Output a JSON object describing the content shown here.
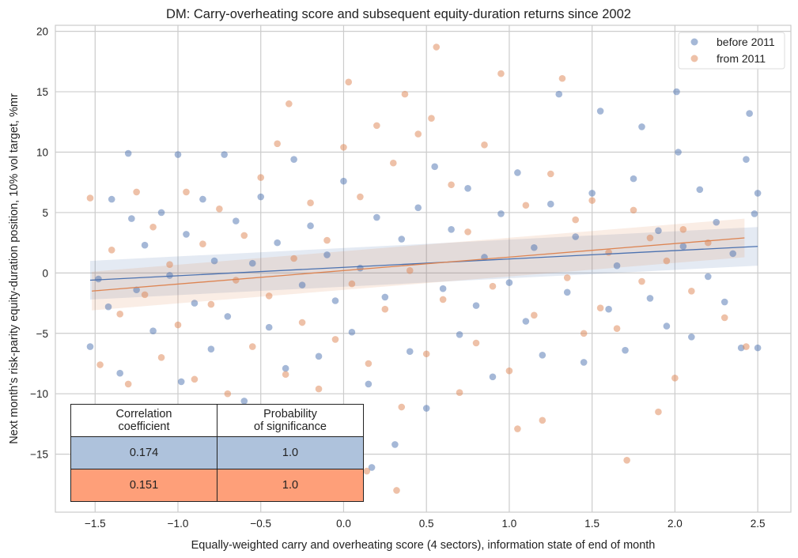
{
  "chart_data": {
    "type": "scatter",
    "title": "DM: Carry-overheating score and subsequent equity-duration returns since 2002",
    "xlabel": "Equally-weighted carry and overheating score (4 sectors), information state of end of month",
    "ylabel": "Next month's risk-parity equity-duration position, 10% vol target, %mr",
    "xlim": [
      -1.74,
      2.7
    ],
    "ylim": [
      -19.8,
      20.5
    ],
    "xticks": [
      -1.5,
      -1.0,
      -0.5,
      0.0,
      0.5,
      1.0,
      1.5,
      2.0,
      2.5
    ],
    "xtick_labels": [
      "−1.5",
      "−1.0",
      "−0.5",
      "0.0",
      "0.5",
      "1.0",
      "1.5",
      "2.0",
      "2.5"
    ],
    "yticks": [
      -15,
      -10,
      -5,
      0,
      5,
      10,
      15,
      20
    ],
    "ytick_labels": [
      "−15",
      "−10",
      "−5",
      "0",
      "5",
      "10",
      "15",
      "20"
    ],
    "grid": true,
    "legend_placement": "top-right",
    "series": [
      {
        "name": "before 2011",
        "color": "#4c72b0",
        "regression": {
          "x": [
            -1.53,
            2.5
          ],
          "y": [
            -0.6,
            2.2
          ]
        },
        "points": [
          [
            -1.53,
            -6.1
          ],
          [
            -1.48,
            -0.5
          ],
          [
            -1.42,
            -2.8
          ],
          [
            -1.4,
            6.1
          ],
          [
            -1.35,
            -8.3
          ],
          [
            -1.3,
            9.9
          ],
          [
            -1.28,
            4.5
          ],
          [
            -1.25,
            -1.4
          ],
          [
            -1.2,
            2.3
          ],
          [
            -1.15,
            -4.8
          ],
          [
            -1.1,
            5.0
          ],
          [
            -1.05,
            -0.2
          ],
          [
            -1.0,
            9.8
          ],
          [
            -0.98,
            -9.0
          ],
          [
            -0.95,
            3.2
          ],
          [
            -0.9,
            -2.5
          ],
          [
            -0.85,
            6.1
          ],
          [
            -0.8,
            -6.3
          ],
          [
            -0.78,
            1.0
          ],
          [
            -0.72,
            9.8
          ],
          [
            -0.7,
            -3.6
          ],
          [
            -0.65,
            4.3
          ],
          [
            -0.6,
            -10.6
          ],
          [
            -0.55,
            0.8
          ],
          [
            -0.5,
            6.3
          ],
          [
            -0.45,
            -4.5
          ],
          [
            -0.4,
            2.5
          ],
          [
            -0.35,
            -7.9
          ],
          [
            -0.3,
            9.4
          ],
          [
            -0.25,
            -1.0
          ],
          [
            -0.2,
            3.9
          ],
          [
            -0.15,
            -6.9
          ],
          [
            -0.1,
            1.5
          ],
          [
            -0.05,
            -2.3
          ],
          [
            0.0,
            7.6
          ],
          [
            0.05,
            -4.9
          ],
          [
            0.1,
            0.4
          ],
          [
            0.15,
            -9.2
          ],
          [
            0.17,
            -16.1
          ],
          [
            0.2,
            4.6
          ],
          [
            0.25,
            -2.0
          ],
          [
            0.31,
            -14.2
          ],
          [
            0.35,
            2.8
          ],
          [
            0.4,
            -6.5
          ],
          [
            0.45,
            5.4
          ],
          [
            0.5,
            -11.2
          ],
          [
            0.55,
            8.8
          ],
          [
            0.6,
            -1.3
          ],
          [
            0.65,
            3.6
          ],
          [
            0.7,
            -5.1
          ],
          [
            0.75,
            7.0
          ],
          [
            0.8,
            -2.7
          ],
          [
            0.85,
            1.3
          ],
          [
            0.9,
            -8.6
          ],
          [
            0.95,
            4.9
          ],
          [
            1.0,
            -0.8
          ],
          [
            1.05,
            8.3
          ],
          [
            1.1,
            -4.0
          ],
          [
            1.15,
            2.1
          ],
          [
            1.2,
            -6.8
          ],
          [
            1.25,
            5.7
          ],
          [
            1.3,
            14.8
          ],
          [
            1.35,
            -1.6
          ],
          [
            1.4,
            3.0
          ],
          [
            1.45,
            -7.4
          ],
          [
            1.5,
            6.6
          ],
          [
            1.55,
            13.4
          ],
          [
            1.6,
            -3.0
          ],
          [
            1.65,
            0.6
          ],
          [
            1.7,
            -6.4
          ],
          [
            1.75,
            7.8
          ],
          [
            1.8,
            12.1
          ],
          [
            1.85,
            -2.1
          ],
          [
            1.9,
            3.5
          ],
          [
            1.95,
            -4.4
          ],
          [
            2.01,
            15.0
          ],
          [
            2.02,
            10.0
          ],
          [
            2.05,
            2.2
          ],
          [
            2.1,
            -5.3
          ],
          [
            2.15,
            6.9
          ],
          [
            2.2,
            -0.3
          ],
          [
            2.25,
            4.2
          ],
          [
            2.3,
            -2.4
          ],
          [
            2.35,
            1.6
          ],
          [
            2.4,
            -6.2
          ],
          [
            2.43,
            9.4
          ],
          [
            2.45,
            13.2
          ],
          [
            2.48,
            4.9
          ],
          [
            2.5,
            -6.2
          ],
          [
            2.5,
            6.6
          ]
        ]
      },
      {
        "name": "from 2011",
        "color": "#dd8452",
        "regression": {
          "x": [
            -1.52,
            2.42
          ],
          "y": [
            -1.5,
            2.9
          ]
        },
        "points": [
          [
            -1.53,
            6.2
          ],
          [
            -1.47,
            -7.6
          ],
          [
            -1.4,
            1.9
          ],
          [
            -1.35,
            -3.4
          ],
          [
            -1.3,
            -9.2
          ],
          [
            -1.25,
            6.7
          ],
          [
            -1.2,
            -1.8
          ],
          [
            -1.15,
            3.8
          ],
          [
            -1.1,
            -7.0
          ],
          [
            -1.05,
            0.7
          ],
          [
            -1.0,
            -4.3
          ],
          [
            -0.95,
            6.7
          ],
          [
            -0.9,
            -8.8
          ],
          [
            -0.85,
            2.4
          ],
          [
            -0.8,
            -2.6
          ],
          [
            -0.75,
            5.3
          ],
          [
            -0.7,
            -10.0
          ],
          [
            -0.65,
            -0.6
          ],
          [
            -0.6,
            3.1
          ],
          [
            -0.55,
            -6.1
          ],
          [
            -0.5,
            7.9
          ],
          [
            -0.45,
            -1.9
          ],
          [
            -0.4,
            10.7
          ],
          [
            -0.35,
            -8.4
          ],
          [
            -0.33,
            14.0
          ],
          [
            -0.3,
            1.2
          ],
          [
            -0.25,
            -4.1
          ],
          [
            -0.2,
            5.8
          ],
          [
            -0.15,
            -9.6
          ],
          [
            -0.1,
            2.7
          ],
          [
            -0.05,
            -5.5
          ],
          [
            0.0,
            10.4
          ],
          [
            0.03,
            15.8
          ],
          [
            0.05,
            -0.9
          ],
          [
            0.1,
            6.3
          ],
          [
            0.14,
            -16.4
          ],
          [
            0.15,
            -7.5
          ],
          [
            0.2,
            12.2
          ],
          [
            0.25,
            -3.0
          ],
          [
            0.3,
            9.1
          ],
          [
            0.32,
            -18.0
          ],
          [
            0.35,
            -11.1
          ],
          [
            0.37,
            14.8
          ],
          [
            0.4,
            0.2
          ],
          [
            0.45,
            11.5
          ],
          [
            0.5,
            -6.7
          ],
          [
            0.53,
            12.8
          ],
          [
            0.56,
            18.7
          ],
          [
            0.6,
            -2.2
          ],
          [
            0.65,
            7.3
          ],
          [
            0.7,
            -9.9
          ],
          [
            0.75,
            3.4
          ],
          [
            0.8,
            -5.8
          ],
          [
            0.85,
            10.6
          ],
          [
            0.9,
            -1.1
          ],
          [
            0.95,
            16.5
          ],
          [
            1.0,
            -8.1
          ],
          [
            1.05,
            -12.9
          ],
          [
            1.1,
            5.6
          ],
          [
            1.15,
            -3.5
          ],
          [
            1.2,
            -12.2
          ],
          [
            1.25,
            8.2
          ],
          [
            1.32,
            16.1
          ],
          [
            1.35,
            -0.4
          ],
          [
            1.4,
            4.4
          ],
          [
            1.45,
            -5.0
          ],
          [
            1.5,
            6.0
          ],
          [
            1.55,
            -2.9
          ],
          [
            1.6,
            1.7
          ],
          [
            1.65,
            -4.6
          ],
          [
            1.71,
            -15.5
          ],
          [
            1.75,
            5.2
          ],
          [
            1.8,
            -0.7
          ],
          [
            1.85,
            2.9
          ],
          [
            1.9,
            -11.5
          ],
          [
            1.95,
            1.0
          ],
          [
            2.0,
            -8.7
          ],
          [
            2.05,
            3.6
          ],
          [
            2.1,
            -1.5
          ],
          [
            2.2,
            2.5
          ],
          [
            2.3,
            -3.7
          ],
          [
            2.43,
            -6.1
          ]
        ]
      }
    ],
    "table": {
      "headers": [
        "Correlation\ncoefficient",
        "Probability\nof significance"
      ],
      "rows": [
        {
          "values": [
            "0.174",
            "1.0"
          ],
          "color": "#aec2dc"
        },
        {
          "values": [
            "0.151",
            "1.0"
          ],
          "color": "#fe9f79"
        }
      ]
    }
  }
}
